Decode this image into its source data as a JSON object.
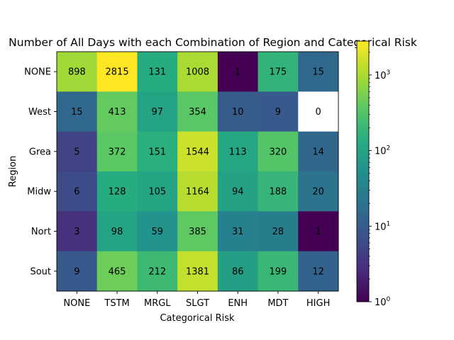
{
  "chart_data": {
    "type": "heatmap",
    "title": "Number of All Days with each Combination of Region and Categorical Risk",
    "xlabel": "Categorical Risk",
    "ylabel": "Region",
    "x_categories": [
      "NONE",
      "TSTM",
      "MRGL",
      "SLGT",
      "ENH",
      "MDT",
      "HIGH"
    ],
    "y_categories": [
      "NONE",
      "West",
      "Grea",
      "Midw",
      "Nort",
      "Sout"
    ],
    "values": [
      [
        898,
        2815,
        131,
        1008,
        1,
        175,
        15
      ],
      [
        15,
        413,
        97,
        354,
        10,
        9,
        0
      ],
      [
        5,
        372,
        151,
        1544,
        113,
        320,
        14
      ],
      [
        6,
        128,
        105,
        1164,
        94,
        188,
        20
      ],
      [
        3,
        98,
        59,
        385,
        31,
        28,
        1
      ],
      [
        9,
        465,
        212,
        1381,
        86,
        199,
        12
      ]
    ],
    "colorbar": {
      "scale": "log",
      "colormap": "viridis",
      "range": [
        1,
        2815
      ],
      "tick_labels": [
        "10^0",
        "10^1",
        "10^2",
        "10^3"
      ],
      "tick_values": [
        1,
        10,
        100,
        1000
      ]
    }
  }
}
